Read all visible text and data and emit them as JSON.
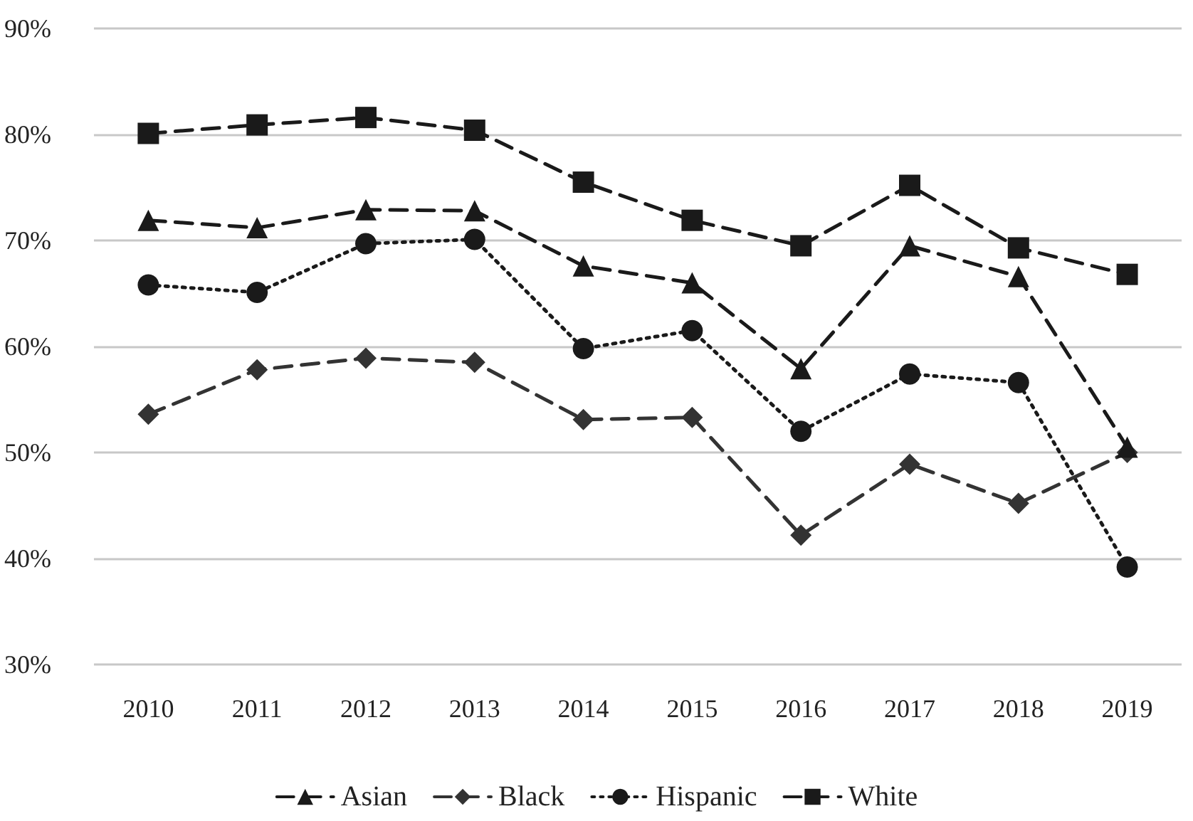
{
  "chart_data": {
    "type": "line",
    "categories": [
      "2010",
      "2011",
      "2012",
      "2013",
      "2014",
      "2015",
      "2016",
      "2017",
      "2018",
      "2019"
    ],
    "series": [
      {
        "name": "Asian",
        "color": "#1a1a1a",
        "marker": "triangle",
        "line_style": "dashed",
        "values": [
          71.9,
          71.2,
          72.9,
          72.8,
          67.6,
          66.0,
          57.9,
          69.5,
          66.6,
          50.5
        ]
      },
      {
        "name": "Black",
        "color": "#333333",
        "marker": "diamond",
        "line_style": "dashed",
        "values": [
          53.6,
          57.8,
          58.9,
          58.5,
          53.1,
          53.3,
          42.2,
          48.9,
          45.2,
          50.0
        ]
      },
      {
        "name": "Hispanic",
        "color": "#1a1a1a",
        "marker": "circle",
        "line_style": "dotted",
        "values": [
          65.8,
          65.1,
          69.7,
          70.1,
          59.8,
          61.5,
          52.0,
          57.4,
          56.6,
          39.2
        ]
      },
      {
        "name": "White",
        "color": "#1a1a1a",
        "marker": "square",
        "line_style": "dashed",
        "values": [
          80.1,
          80.9,
          81.6,
          80.4,
          75.5,
          71.9,
          69.5,
          75.2,
          69.3,
          66.8
        ]
      }
    ],
    "ylim": [
      30,
      90
    ],
    "yticks": [
      {
        "value": 30,
        "label": "30%"
      },
      {
        "value": 40,
        "label": "40%"
      },
      {
        "value": 50,
        "label": "50%"
      },
      {
        "value": 60,
        "label": "60%"
      },
      {
        "value": 70,
        "label": "70%"
      },
      {
        "value": 80,
        "label": "80%"
      },
      {
        "value": 90,
        "label": "90%"
      }
    ],
    "grid": "y",
    "legend": "bottom"
  }
}
